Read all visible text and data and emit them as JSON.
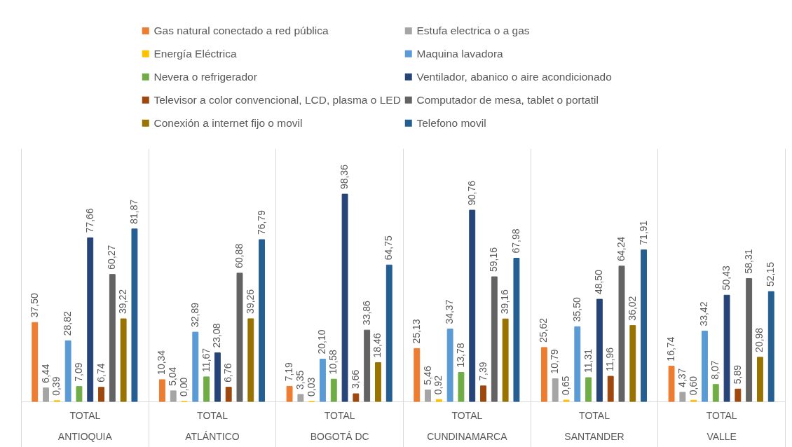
{
  "chart_data": {
    "type": "bar",
    "legend": "top",
    "grid": "x",
    "categories": [
      "TOTAL\nANTIOQUIA",
      "TOTAL\nATLÁNTICO",
      "TOTAL\nBOGOTÁ DC",
      "TOTAL\nCUNDINAMARCA",
      "TOTAL\nSANTANDER",
      "TOTAL\nVALLE"
    ],
    "series": [
      {
        "name": "Gas natural conectado a red pública",
        "color": "#ed7d31",
        "values": [
          37.5,
          10.34,
          7.19,
          25.13,
          25.62,
          16.74
        ],
        "value_labels": [
          "37,50",
          "10,34",
          "7,19",
          "25,13",
          "25,62",
          "16,74"
        ]
      },
      {
        "name": "Estufa electrica o a gas",
        "color": "#a5a5a5",
        "values": [
          6.44,
          5.04,
          3.35,
          5.46,
          10.79,
          4.37
        ],
        "value_labels": [
          "6,44",
          "5,04",
          "3,35",
          "5,46",
          "10,79",
          "4,37"
        ]
      },
      {
        "name": "Energía Eléctrica",
        "color": "#ffc000",
        "values": [
          0.39,
          0.0,
          0.03,
          0.92,
          0.65,
          0.6
        ],
        "value_labels": [
          "0,39",
          "0,00",
          "0,03",
          "0,92",
          "0,65",
          "0,60"
        ]
      },
      {
        "name": "Maquina lavadora",
        "color": "#5b9bd5",
        "values": [
          28.82,
          32.89,
          20.1,
          34.37,
          35.5,
          33.42
        ],
        "value_labels": [
          "28,82",
          "32,89",
          "20,10",
          "34,37",
          "35,50",
          "33,42"
        ]
      },
      {
        "name": "Nevera o refrigerador",
        "color": "#70ad47",
        "values": [
          7.09,
          11.67,
          10.58,
          13.78,
          11.31,
          8.07
        ],
        "value_labels": [
          "7,09",
          "11,67",
          "10,58",
          "13,78",
          "11,31",
          "8,07"
        ]
      },
      {
        "name": "Ventilador, abanico o aire acondicionado",
        "color": "#264478",
        "values": [
          77.66,
          23.08,
          98.36,
          90.76,
          48.5,
          50.43
        ],
        "value_labels": [
          "77,66",
          "23,08",
          "98,36",
          "90,76",
          "48,50",
          "50,43"
        ]
      },
      {
        "name": "Televisor a color convencional, LCD, plasma o LED",
        "color": "#9e480e",
        "values": [
          6.74,
          6.76,
          3.66,
          7.39,
          11.96,
          5.89
        ],
        "value_labels": [
          "6,74",
          "6,76",
          "3,66",
          "7,39",
          "11,96",
          "5,89"
        ]
      },
      {
        "name": "Computador de mesa, tablet o portatil",
        "color": "#636363",
        "values": [
          60.27,
          60.88,
          33.86,
          59.16,
          64.24,
          58.31
        ],
        "value_labels": [
          "60,27",
          "60,88",
          "33,86",
          "59,16",
          "64,24",
          "58,31"
        ]
      },
      {
        "name": "Conexión a internet fijo o movil",
        "color": "#997300",
        "values": [
          39.22,
          39.26,
          18.46,
          39.16,
          36.02,
          20.98
        ],
        "value_labels": [
          "39,22",
          "39,26",
          "18,46",
          "39,16",
          "36,02",
          "20,98"
        ]
      },
      {
        "name": "Telefono movil",
        "color": "#255e91",
        "values": [
          81.87,
          76.79,
          64.75,
          67.98,
          71.91,
          52.15
        ],
        "value_labels": [
          "81,87",
          "76,79",
          "64,75",
          "67,98",
          "71,91",
          "52,15"
        ]
      }
    ]
  }
}
